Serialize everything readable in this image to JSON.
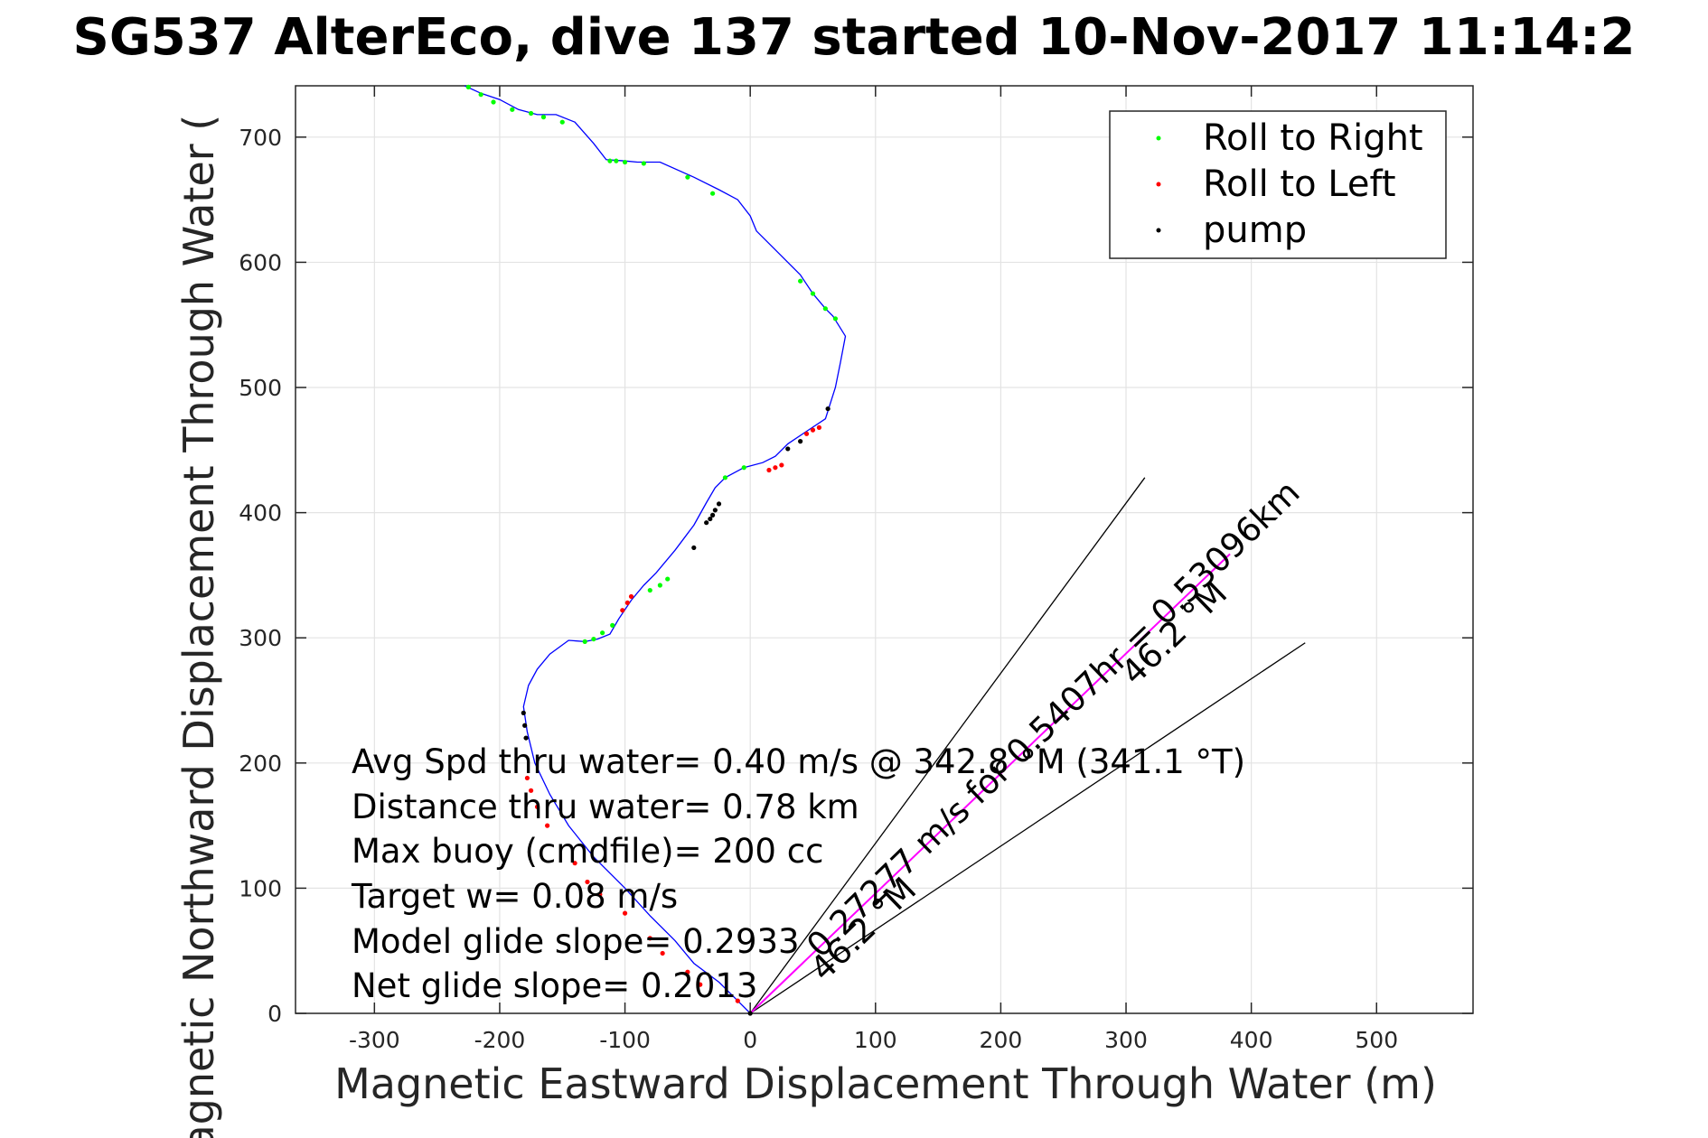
{
  "title": "SG537 AlterEco, dive 137 started 10-Nov-2017 11:14:2",
  "chart_data": {
    "type": "line",
    "title": "SG537 AlterEco, dive 137 started 10-Nov-2017 11:14:2",
    "xlabel": "Magnetic Eastward Displacement Through Water (m)",
    "ylabel": "Magnetic Northward Displacement Through Water (",
    "xlim": [
      -363,
      577
    ],
    "ylim": [
      0,
      741
    ],
    "xticks": [
      -300,
      -200,
      -100,
      0,
      100,
      200,
      300,
      400,
      500
    ],
    "yticks": [
      0,
      100,
      200,
      300,
      400,
      500,
      600,
      700
    ],
    "grid": true,
    "legend_position": "top-right",
    "legend": [
      {
        "name": "Roll to Right",
        "color": "#00ff00"
      },
      {
        "name": "Roll to Left",
        "color": "#ff0000"
      },
      {
        "name": "pump",
        "color": "#000000"
      }
    ],
    "track": {
      "name": "track",
      "color": "#0000ff",
      "x": [
        0,
        -10,
        -25,
        -45,
        -60,
        -80,
        -100,
        -125,
        -145,
        -160,
        -172,
        -178,
        -181,
        -177,
        -170,
        -160,
        -145,
        -132,
        -122,
        -112,
        -105,
        -95,
        -85,
        -75,
        -60,
        -45,
        -35,
        -28,
        -20,
        -5,
        10,
        20,
        30,
        45,
        60,
        68,
        72,
        76,
        66,
        60,
        50,
        40,
        20,
        5,
        0,
        -10,
        -25,
        -45,
        -72,
        -90,
        -100,
        -115,
        -125,
        -140,
        -155,
        -170,
        -185,
        -200,
        -215,
        -228
      ],
      "y": [
        0,
        10,
        25,
        40,
        58,
        78,
        100,
        125,
        150,
        175,
        200,
        225,
        245,
        262,
        275,
        287,
        298,
        297,
        299,
        303,
        315,
        330,
        342,
        352,
        370,
        390,
        408,
        420,
        428,
        436,
        440,
        445,
        455,
        465,
        475,
        500,
        520,
        541,
        557,
        563,
        575,
        590,
        610,
        625,
        637,
        650,
        658,
        668,
        680,
        680,
        681,
        682,
        695,
        712,
        718,
        718,
        722,
        730,
        735,
        741
      ]
    },
    "roll_right": {
      "name": "Roll to Right",
      "color": "#00ff00",
      "x": [
        -5,
        -110,
        -118,
        -125,
        -132,
        -66,
        -72,
        -80,
        -20,
        68,
        60,
        50,
        40,
        -30,
        -50,
        -85,
        -100,
        -107,
        -112,
        -150,
        -165,
        -175,
        -190,
        -205,
        -215,
        -225
      ],
      "y": [
        436,
        310,
        304,
        299,
        297,
        347,
        342,
        338,
        428,
        555,
        563,
        575,
        585,
        655,
        668,
        679,
        680,
        681,
        681,
        712,
        716,
        719,
        722,
        728,
        734,
        740
      ]
    },
    "roll_left": {
      "name": "Roll to Left",
      "color": "#ff0000",
      "x": [
        -95,
        -98,
        -102,
        15,
        20,
        25,
        45,
        50,
        55,
        -178,
        -175,
        -170,
        -162,
        -140,
        -130,
        -120,
        -100,
        -80,
        -70,
        -50,
        -40,
        -10
      ],
      "y": [
        333,
        328,
        322,
        434,
        436,
        438,
        463,
        466,
        468,
        188,
        178,
        165,
        150,
        120,
        105,
        95,
        80,
        60,
        48,
        33,
        23,
        10
      ]
    },
    "pump": {
      "name": "pump",
      "color": "#000000",
      "x": [
        -25,
        -28,
        -30,
        -32,
        -35,
        -45,
        30,
        40,
        62,
        -181,
        -180,
        -179,
        0
      ],
      "y": [
        407,
        402,
        398,
        395,
        392,
        372,
        451,
        457,
        483,
        240,
        230,
        220,
        0
      ]
    },
    "heading_lines": [
      {
        "from": [
          0,
          0
        ],
        "to": [
          315,
          428
        ]
      },
      {
        "from": [
          0,
          0
        ],
        "to": [
          443,
          296
        ]
      }
    ],
    "current_line": {
      "color": "#ff00ff",
      "from": [
        0,
        0
      ],
      "to": [
        383,
        367
      ]
    },
    "annotations": [
      "Avg Spd thru water=  0.40 m/s @ 342.8 °M (341.1 °T)",
      "Distance thru water=  0.78 km",
      "Max buoy (cmdfile)= 200 cc",
      "Target w= 0.08 m/s",
      "Model glide slope= 0.2933",
      "Net glide slope= 0.2013"
    ],
    "rotated_annotations": [
      "0.27277 m/s for 0.5407hr = 0.53096km",
      "46.2 °M",
      "46.2 °M"
    ]
  }
}
